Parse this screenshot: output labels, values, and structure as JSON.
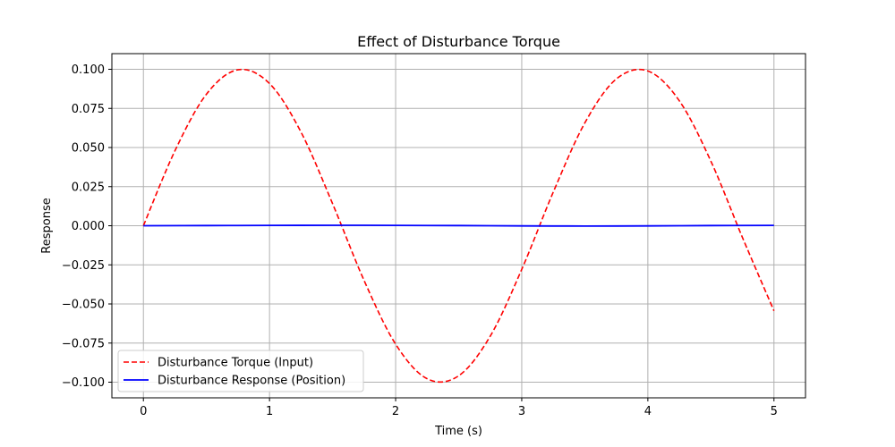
{
  "chart_data": {
    "type": "line",
    "title": "Effect of Disturbance Torque",
    "xlabel": "Time (s)",
    "ylabel": "Response",
    "xlim": [
      -0.25,
      5.25
    ],
    "ylim": [
      -0.11,
      0.11
    ],
    "xticks": [
      0,
      1,
      2,
      3,
      4,
      5
    ],
    "xtick_labels": [
      "0",
      "1",
      "2",
      "3",
      "4",
      "5"
    ],
    "yticks": [
      -0.1,
      -0.075,
      -0.05,
      -0.025,
      0,
      0.025,
      0.05,
      0.075,
      0.1
    ],
    "ytick_labels": [
      "−0.100",
      "−0.075",
      "−0.050",
      "−0.025",
      "0.000",
      "0.025",
      "0.050",
      "0.075",
      "0.100"
    ],
    "grid": true,
    "legend_position": "lower-left",
    "series": [
      {
        "name": "Disturbance Torque (Input)",
        "color": "#ff0000",
        "style": "dashed",
        "x": [
          0,
          0.25,
          0.5,
          0.75,
          1.0,
          1.25,
          1.5,
          1.75,
          2.0,
          2.25,
          2.5,
          2.75,
          3.0,
          3.25,
          3.5,
          3.75,
          4.0,
          4.25,
          4.5,
          4.75,
          5.0
        ],
        "y": [
          0,
          0.0479,
          0.0841,
          0.0997,
          0.0909,
          0.0598,
          0.0141,
          -0.035,
          -0.0757,
          -0.0978,
          -0.0959,
          -0.0706,
          -0.0279,
          0.0215,
          0.0657,
          0.0938,
          0.0989,
          0.0798,
          0.0412,
          -0.0075,
          -0.0544
        ]
      },
      {
        "name": "Disturbance Response (Position)",
        "color": "#0000ff",
        "style": "solid",
        "x": [
          0,
          0.5,
          1.0,
          1.5,
          2.0,
          2.5,
          3.0,
          3.5,
          4.0,
          4.5,
          5.0
        ],
        "y": [
          0,
          0.0001,
          0.0002,
          0.0003,
          0.0002,
          0.0001,
          -0.0001,
          -0.0002,
          -0.0001,
          0.0001,
          0.0002
        ]
      }
    ]
  }
}
